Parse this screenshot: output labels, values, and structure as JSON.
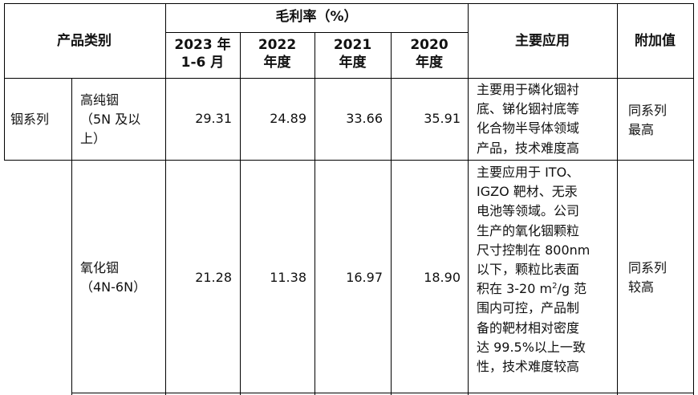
{
  "header": {
    "category": "产品类别",
    "margin_group": "毛利率（%）",
    "periods": [
      {
        "line1": "2023 年",
        "line2": "1-6 月"
      },
      {
        "line1": "2022",
        "line2": "年度"
      },
      {
        "line1": "2021",
        "line2": "年度"
      },
      {
        "line1": "2020",
        "line2": "年度"
      }
    ],
    "application": "主要应用",
    "added_value": "附加值"
  },
  "rows": [
    {
      "series": "铟系列",
      "product": [
        "高纯铟",
        "（5N 及以",
        "上）"
      ],
      "margins": [
        "29.31",
        "24.89",
        "33.66",
        "35.91"
      ],
      "application": [
        "主要用于磷化铟衬",
        "底、锑化铟衬底等",
        "化合物半导体领域",
        "产品，技术难度高"
      ],
      "added_value": [
        "同系列",
        "最高"
      ]
    },
    {
      "series": "",
      "product": [
        "氧化铟",
        "（4N-6N）"
      ],
      "margins": [
        "21.28",
        "11.38",
        "16.97",
        "18.90"
      ],
      "application": [
        "主要应用于 ITO、",
        "IGZO 靶材、无汞",
        "电池等领域。公司",
        "生产的氧化铟颗粒",
        "尺寸控制在 800nm",
        "以下，颗粒比表面",
        "积在 3-20 m",
        "2",
        "/g 范",
        "围内可控，产品制",
        "备的靶材相对密度",
        "达 99.5%以上一致",
        "性，技术难度较高"
      ],
      "added_value": [
        "同系列",
        "较高"
      ]
    }
  ]
}
